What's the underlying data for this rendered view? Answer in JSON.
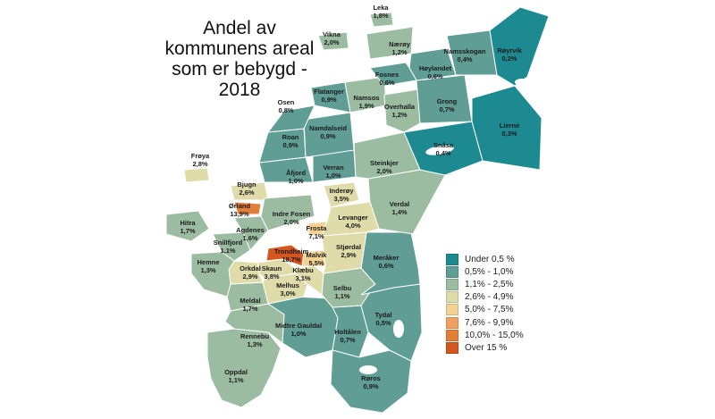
{
  "title_lines": [
    "Andel av",
    "kommunens areal",
    "som er bebygd -",
    "2018"
  ],
  "colors": {
    "water": "#ffffff",
    "border": "#ffffff"
  },
  "legend": [
    {
      "label": "Under 0,5 %",
      "color": "#1d8a92"
    },
    {
      "label": "0,5% - 1,0%",
      "color": "#5f9d95"
    },
    {
      "label": "1,1% - 2,5%",
      "color": "#9bbca0"
    },
    {
      "label": "2,6% - 4,9%",
      "color": "#dfdcaa"
    },
    {
      "label": "5,0% - 7,5%",
      "color": "#f3d293"
    },
    {
      "label": "7,6% - 9,9%",
      "color": "#efa05f"
    },
    {
      "label": "10,0% - 15,0%",
      "color": "#e37e37"
    },
    {
      "label": "Over 15 %",
      "color": "#d6561f"
    }
  ],
  "municipalities": [
    {
      "name": "Leka",
      "value": "1,8%"
    },
    {
      "name": "Vikna",
      "value": "2,0%"
    },
    {
      "name": "Nærøy",
      "value": "1,2%"
    },
    {
      "name": "Namsskogan",
      "value": "0,4%"
    },
    {
      "name": "Røyrvik",
      "value": "0,2%"
    },
    {
      "name": "Høylandet",
      "value": "0,6%"
    },
    {
      "name": "Fosnes",
      "value": "0,6%"
    },
    {
      "name": "Flatanger",
      "value": "0,9%"
    },
    {
      "name": "Osen",
      "value": "0,8%"
    },
    {
      "name": "Namsos",
      "value": "1,9%"
    },
    {
      "name": "Grong",
      "value": "0,7%"
    },
    {
      "name": "Overhalla",
      "value": "1,2%"
    },
    {
      "name": "Lierne",
      "value": "0,3%"
    },
    {
      "name": "Namdalseid",
      "value": "0,9%"
    },
    {
      "name": "Roan",
      "value": "0,9%"
    },
    {
      "name": "Snåsa",
      "value": "0,4%"
    },
    {
      "name": "Frøya",
      "value": "2,8%"
    },
    {
      "name": "Steinkjer",
      "value": "2,0%"
    },
    {
      "name": "Verran",
      "value": "1,0%"
    },
    {
      "name": "Åfjord",
      "value": "1,0%"
    },
    {
      "name": "Bjugn",
      "value": "2,6%"
    },
    {
      "name": "Inderøy",
      "value": "3,5%"
    },
    {
      "name": "Verdal",
      "value": "1,4%"
    },
    {
      "name": "Ørland",
      "value": "13,9%"
    },
    {
      "name": "Indre Fosen",
      "value": "2,0%"
    },
    {
      "name": "Hitra",
      "value": "1,7%"
    },
    {
      "name": "Levanger",
      "value": "4,0%"
    },
    {
      "name": "Agdenes",
      "value": "1,6%"
    },
    {
      "name": "Frosta",
      "value": "7,1%"
    },
    {
      "name": "Snillfjord",
      "value": "1,1%"
    },
    {
      "name": "Stjørdal",
      "value": "2,9%"
    },
    {
      "name": "Trondheim",
      "value": "18,7%"
    },
    {
      "name": "Malvik",
      "value": "5,5%"
    },
    {
      "name": "Meråker",
      "value": "0,6%"
    },
    {
      "name": "Hemne",
      "value": "1,3%"
    },
    {
      "name": "Orkdal",
      "value": "2,9%"
    },
    {
      "name": "Skaun",
      "value": "3,8%"
    },
    {
      "name": "Klæbu",
      "value": "3,1%"
    },
    {
      "name": "Melhus",
      "value": "3,0%"
    },
    {
      "name": "Selbu",
      "value": "1,1%"
    },
    {
      "name": "Meldal",
      "value": "1,7%"
    },
    {
      "name": "Tydal",
      "value": "0,5%"
    },
    {
      "name": "Midtre Gauldal",
      "value": "1,0%"
    },
    {
      "name": "Holtålen",
      "value": "0,7%"
    },
    {
      "name": "Rennebu",
      "value": "1,3%"
    },
    {
      "name": "Oppdal",
      "value": "1,1%"
    },
    {
      "name": "Røros",
      "value": "0,9%"
    }
  ]
}
